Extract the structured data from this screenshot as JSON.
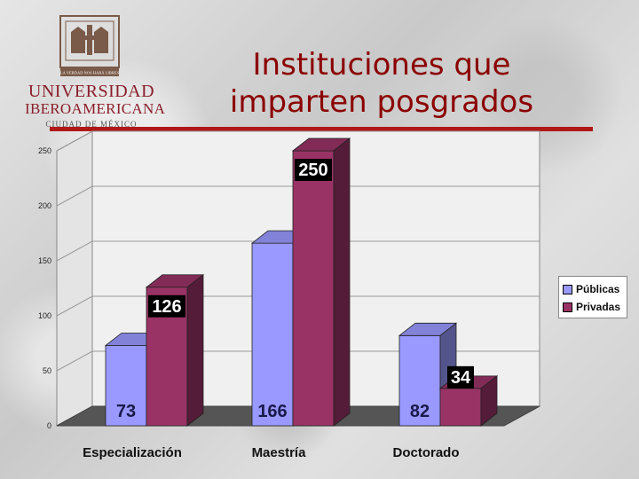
{
  "logo": {
    "line1": "UNIVERSIDAD",
    "line2": "IBEROAMERICANA",
    "line3": "CIUDAD DE MÉXICO",
    "motto": "LA VERDAD NOS HARÁ LIBRES"
  },
  "title": {
    "line1": "Instituciones que",
    "line2": "imparten posgrados"
  },
  "chart_data": {
    "type": "bar",
    "categories": [
      "Especialización",
      "Maestría",
      "Doctorado"
    ],
    "series": [
      {
        "name": "Públicas",
        "values": [
          73,
          166,
          82
        ],
        "color": "#9999ff"
      },
      {
        "name": "Privadas",
        "values": [
          126,
          250,
          34
        ],
        "color": "#993366"
      }
    ],
    "data_labels": [
      [
        "73",
        "166",
        "82"
      ],
      [
        "126",
        "250",
        "34"
      ]
    ],
    "y_ticks": [
      "0",
      "50",
      "100",
      "150",
      "200",
      "250"
    ],
    "ylim": [
      0,
      250
    ],
    "grid": true,
    "legend_position": "right",
    "three_d": true
  }
}
